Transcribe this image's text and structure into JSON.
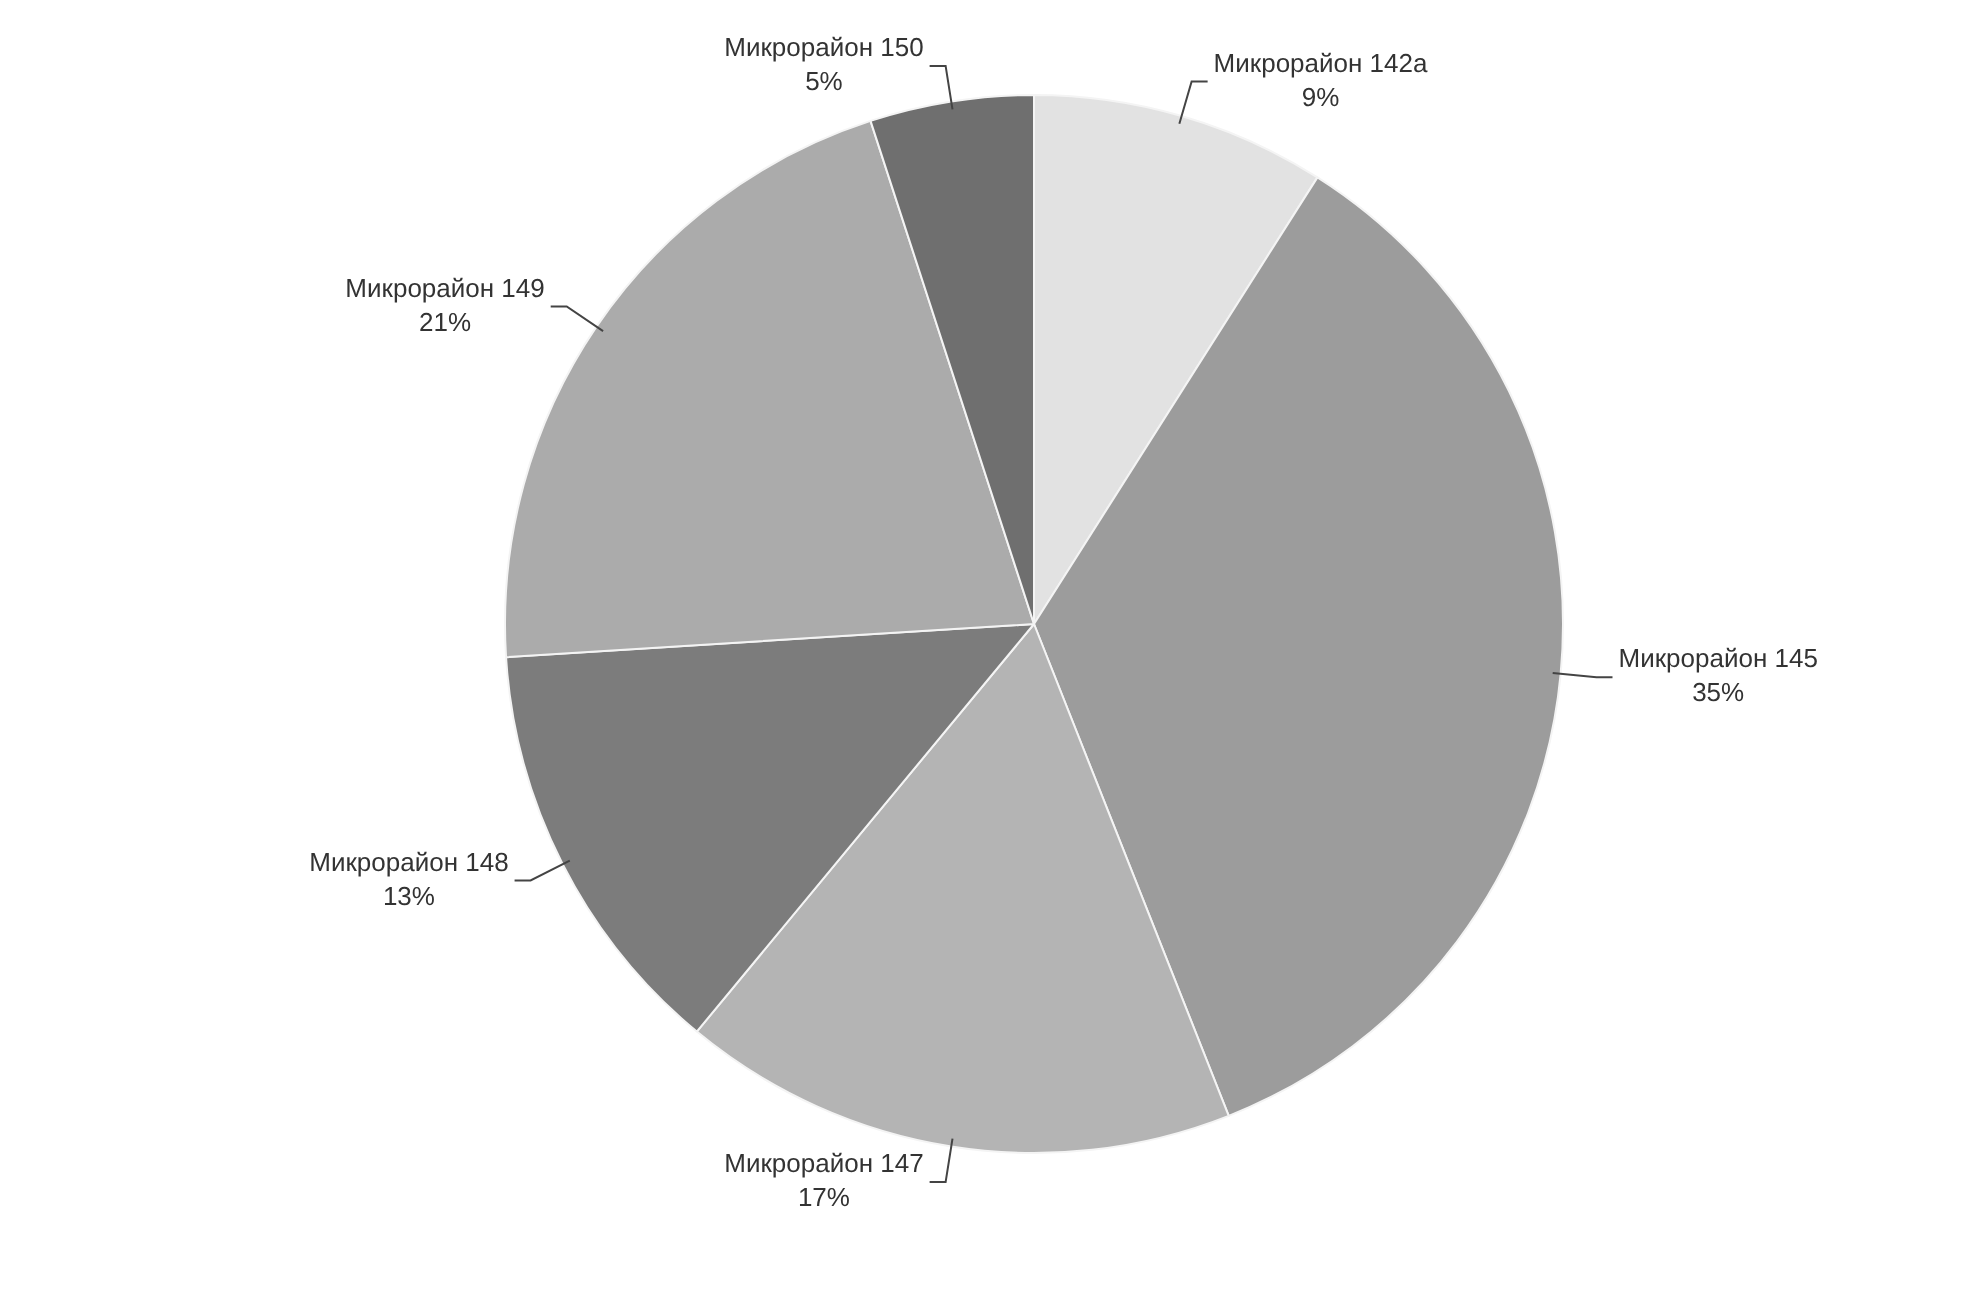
{
  "chart_data": {
    "type": "pie",
    "categories": [
      "Микрорайон 142а",
      "Микрорайон 145",
      "Микрорайон 147",
      "Микрорайон 148",
      "Микрорайон 149",
      "Микрорайон 150"
    ],
    "values": [
      9,
      35,
      17,
      13,
      21,
      5
    ],
    "value_labels": [
      "9%",
      "35%",
      "17%",
      "13%",
      "21%",
      "5%"
    ],
    "colors": [
      "#e2e2e2",
      "#9c9c9c",
      "#b4b4b4",
      "#7c7c7c",
      "#ababab",
      "#6f6f6f"
    ],
    "legend": false
  }
}
